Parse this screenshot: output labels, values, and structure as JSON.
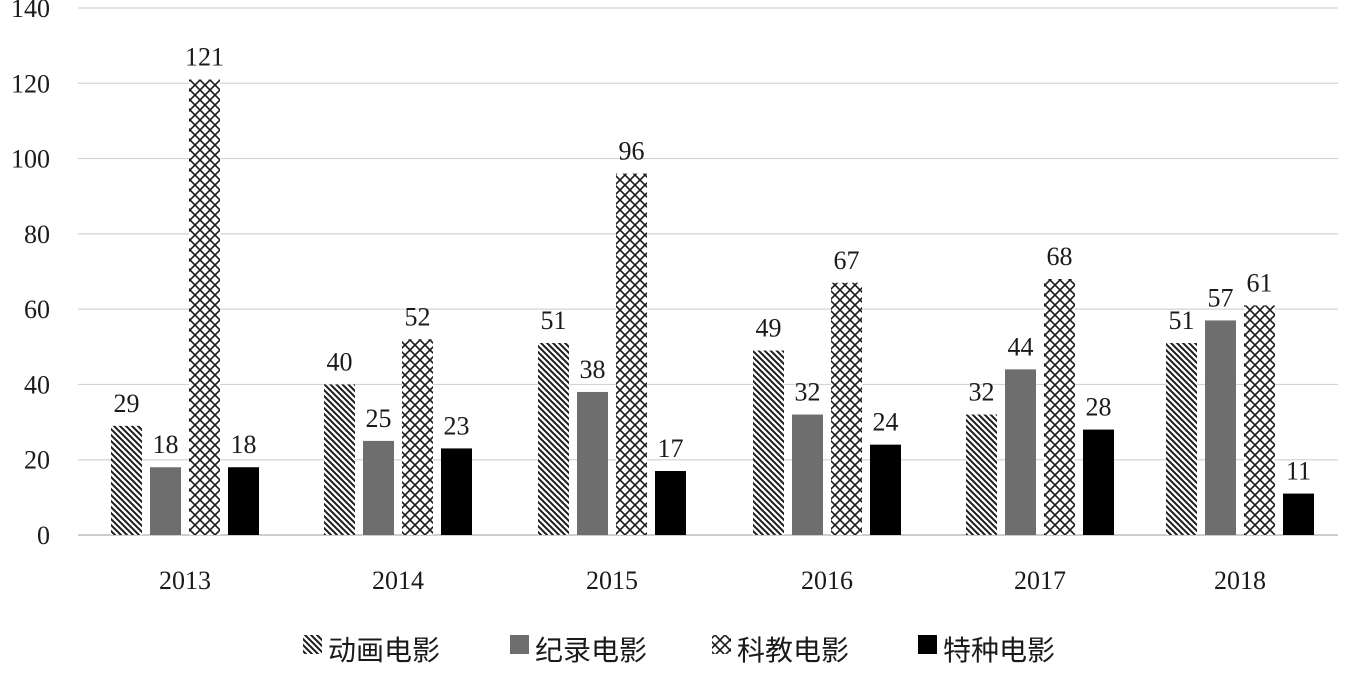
{
  "chart_data": {
    "type": "bar",
    "categories": [
      "2013",
      "2014",
      "2015",
      "2016",
      "2017",
      "2018"
    ],
    "series": [
      {
        "name": "动画电影",
        "values": [
          29,
          40,
          51,
          49,
          32,
          51
        ],
        "pattern": "diagonal-hatch",
        "color": "#1a1a1a"
      },
      {
        "name": "纪录电影",
        "values": [
          18,
          25,
          38,
          32,
          44,
          57
        ],
        "pattern": "solid",
        "color": "#6e6e6e"
      },
      {
        "name": "科教电影",
        "values": [
          121,
          52,
          96,
          67,
          68,
          61
        ],
        "pattern": "crosshatch",
        "color": "#1a1a1a"
      },
      {
        "name": "特种电影",
        "values": [
          18,
          23,
          17,
          24,
          28,
          11
        ],
        "pattern": "solid",
        "color": "#000000"
      }
    ],
    "y_ticks": [
      "0",
      "20",
      "40",
      "60",
      "80",
      "100",
      "120",
      "140"
    ],
    "ylim": [
      0,
      140
    ],
    "grid": true,
    "legend_position": "bottom",
    "data_labels": true
  }
}
